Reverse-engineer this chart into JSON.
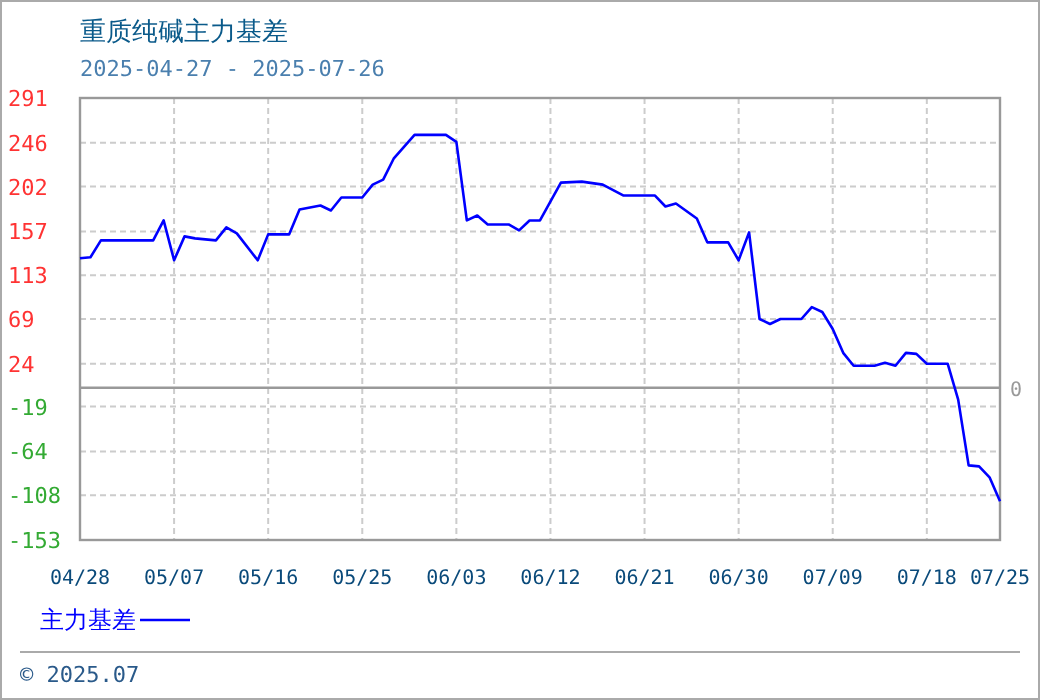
{
  "chart_data": {
    "type": "line",
    "title": "重质纯碱主力基差",
    "subtitle": "2025-04-27 - 2025-07-26",
    "x": [
      "2025-04-28",
      "2025-04-29",
      "2025-04-30",
      "2025-05-05",
      "2025-05-06",
      "2025-05-07",
      "2025-05-08",
      "2025-05-09",
      "2025-05-11",
      "2025-05-12",
      "2025-05-13",
      "2025-05-15",
      "2025-05-16",
      "2025-05-18",
      "2025-05-19",
      "2025-05-21",
      "2025-05-22",
      "2025-05-23",
      "2025-05-25",
      "2025-05-26",
      "2025-05-27",
      "2025-05-28",
      "2025-05-30",
      "2025-06-02",
      "2025-06-03",
      "2025-06-04",
      "2025-06-05",
      "2025-06-06",
      "2025-06-08",
      "2025-06-09",
      "2025-06-10",
      "2025-06-11",
      "2025-06-13",
      "2025-06-15",
      "2025-06-17",
      "2025-06-19",
      "2025-06-22",
      "2025-06-23",
      "2025-06-24",
      "2025-06-26",
      "2025-06-27",
      "2025-06-29",
      "2025-06-30",
      "2025-07-01",
      "2025-07-02",
      "2025-07-03",
      "2025-07-04",
      "2025-07-06",
      "2025-07-07",
      "2025-07-08",
      "2025-07-09",
      "2025-07-10",
      "2025-07-11",
      "2025-07-13",
      "2025-07-14",
      "2025-07-15",
      "2025-07-16",
      "2025-07-17",
      "2025-07-18",
      "2025-07-20",
      "2025-07-21",
      "2025-07-22",
      "2025-07-23",
      "2025-07-24",
      "2025-07-25"
    ],
    "series": [
      {
        "name": "主力基差",
        "color": "#0000ff",
        "values": [
          130,
          131,
          148,
          148,
          168,
          128,
          152,
          150,
          148,
          161,
          155,
          128,
          154,
          154,
          179,
          183,
          178,
          191,
          191,
          204,
          209,
          230,
          254,
          254,
          247,
          168,
          173,
          164,
          164,
          158,
          168,
          168,
          206,
          207,
          204,
          193,
          193,
          182,
          185,
          170,
          146,
          146,
          128,
          156,
          69,
          64,
          69,
          69,
          81,
          76,
          59,
          35,
          22,
          22,
          25,
          22,
          35,
          34,
          24,
          24,
          -12,
          -78,
          -79,
          -90,
          -114
        ]
      }
    ],
    "xlim": [
      "2025-04-28",
      "2025-07-25"
    ],
    "xticks": [
      {
        "value": "2025-04-28",
        "label": "04/28"
      },
      {
        "value": "2025-05-07",
        "label": "05/07"
      },
      {
        "value": "2025-05-16",
        "label": "05/16"
      },
      {
        "value": "2025-05-25",
        "label": "05/25"
      },
      {
        "value": "2025-06-03",
        "label": "06/03"
      },
      {
        "value": "2025-06-12",
        "label": "06/12"
      },
      {
        "value": "2025-06-21",
        "label": "06/21"
      },
      {
        "value": "2025-06-30",
        "label": "06/30"
      },
      {
        "value": "2025-07-09",
        "label": "07/09"
      },
      {
        "value": "2025-07-18",
        "label": "07/18"
      },
      {
        "value": "2025-07-25",
        "label": "07/25"
      }
    ],
    "ylim": [
      -153,
      291
    ],
    "yticks": [
      291,
      246,
      202,
      157,
      113,
      69,
      24,
      -19,
      -64,
      -108,
      -153
    ],
    "ref_lines": [
      {
        "axis": "y",
        "value": 0,
        "label": "0",
        "color": "#999999"
      }
    ],
    "grid": true,
    "legend": "bottom left",
    "marker": "none",
    "line_style": "solid",
    "annotations": [
      "© 2025.07"
    ]
  }
}
